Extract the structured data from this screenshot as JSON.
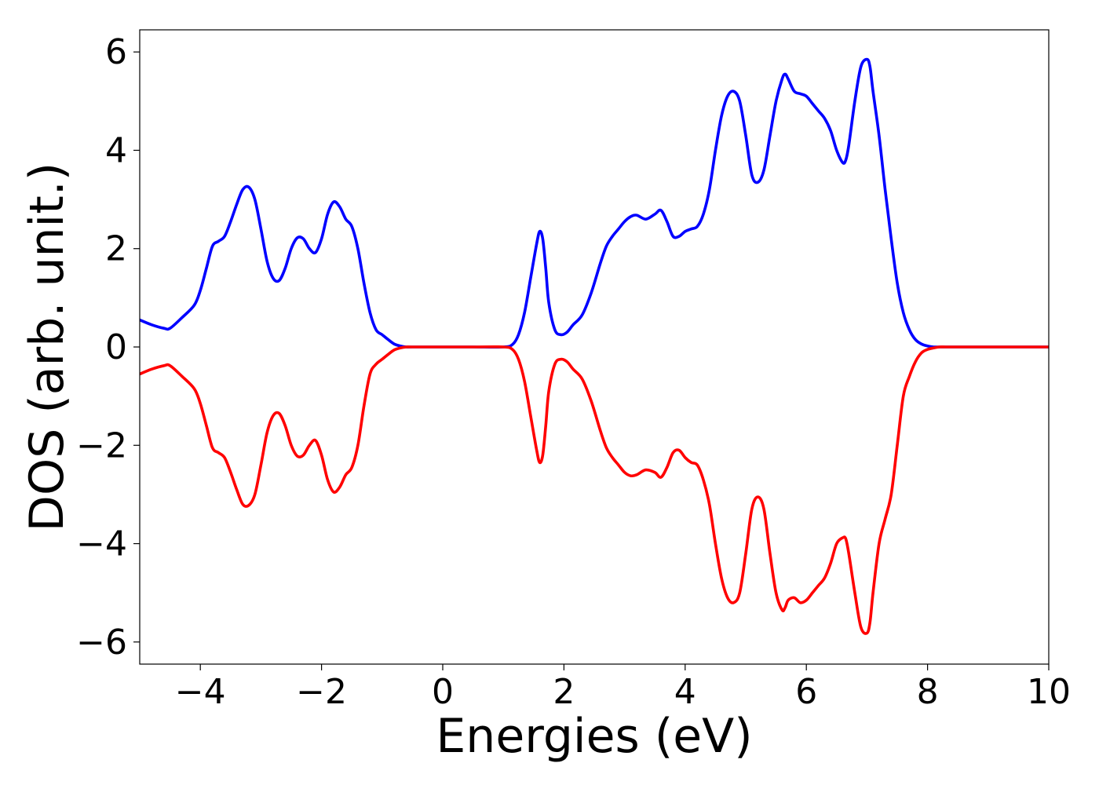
{
  "chart_data": {
    "type": "line",
    "title": "",
    "xlabel": "Energies (eV)",
    "ylabel": "DOS (arb. unit.)",
    "xlim": [
      -5,
      10
    ],
    "ylim": [
      -6.45,
      6.45
    ],
    "xticks": [
      -4,
      -2,
      0,
      2,
      4,
      6,
      8,
      10
    ],
    "xtick_labels": [
      "−4",
      "−2",
      "0",
      "2",
      "4",
      "6",
      "8",
      "10"
    ],
    "yticks": [
      -6,
      -4,
      -2,
      0,
      2,
      4,
      6
    ],
    "ytick_labels": [
      "−6",
      "−4",
      "−2",
      "0",
      "2",
      "4",
      "6"
    ],
    "grid": false,
    "legend": false,
    "series": [
      {
        "color": "#0000ff",
        "x": [
          -5.0,
          -4.8,
          -4.6,
          -4.5,
          -4.3,
          -4.1,
          -4.0,
          -3.9,
          -3.8,
          -3.7,
          -3.6,
          -3.5,
          -3.4,
          -3.3,
          -3.2,
          -3.1,
          -3.0,
          -2.9,
          -2.8,
          -2.7,
          -2.6,
          -2.5,
          -2.4,
          -2.3,
          -2.2,
          -2.1,
          -2.0,
          -1.9,
          -1.8,
          -1.7,
          -1.6,
          -1.5,
          -1.4,
          -1.3,
          -1.2,
          -1.1,
          -1.0,
          -0.9,
          -0.8,
          -0.7,
          -0.6,
          -0.5,
          0.0,
          0.5,
          1.0,
          1.15,
          1.25,
          1.35,
          1.45,
          1.55,
          1.6,
          1.65,
          1.7,
          1.75,
          1.85,
          1.95,
          2.05,
          2.15,
          2.3,
          2.45,
          2.6,
          2.7,
          2.8,
          2.9,
          3.0,
          3.1,
          3.2,
          3.35,
          3.5,
          3.6,
          3.7,
          3.8,
          3.9,
          4.0,
          4.1,
          4.2,
          4.3,
          4.4,
          4.5,
          4.6,
          4.7,
          4.8,
          4.9,
          5.0,
          5.1,
          5.2,
          5.3,
          5.4,
          5.5,
          5.6,
          5.65,
          5.7,
          5.8,
          5.9,
          6.0,
          6.1,
          6.2,
          6.3,
          6.4,
          6.5,
          6.6,
          6.65,
          6.7,
          6.8,
          6.9,
          7.0,
          7.05,
          7.1,
          7.2,
          7.3,
          7.4,
          7.5,
          7.6,
          7.7,
          7.8,
          7.9,
          8.0,
          8.1,
          8.2,
          8.3,
          8.5,
          9.0,
          10.0
        ],
        "y": [
          0.55,
          0.45,
          0.38,
          0.38,
          0.6,
          0.85,
          1.15,
          1.6,
          2.05,
          2.15,
          2.25,
          2.55,
          2.9,
          3.2,
          3.25,
          3.0,
          2.4,
          1.75,
          1.4,
          1.35,
          1.6,
          2.0,
          2.22,
          2.2,
          2.0,
          1.92,
          2.2,
          2.7,
          2.95,
          2.85,
          2.6,
          2.45,
          2.0,
          1.3,
          0.7,
          0.35,
          0.25,
          0.15,
          0.06,
          0.02,
          0.0,
          0.0,
          0.0,
          0.0,
          0.0,
          0.05,
          0.25,
          0.7,
          1.4,
          2.1,
          2.35,
          2.2,
          1.6,
          0.9,
          0.35,
          0.25,
          0.3,
          0.45,
          0.65,
          1.1,
          1.7,
          2.05,
          2.25,
          2.4,
          2.55,
          2.65,
          2.68,
          2.6,
          2.7,
          2.78,
          2.55,
          2.25,
          2.25,
          2.35,
          2.4,
          2.45,
          2.7,
          3.2,
          4.0,
          4.7,
          5.1,
          5.2,
          5.0,
          4.3,
          3.5,
          3.35,
          3.6,
          4.3,
          5.0,
          5.45,
          5.55,
          5.45,
          5.2,
          5.15,
          5.1,
          4.95,
          4.8,
          4.65,
          4.4,
          4.0,
          3.75,
          3.8,
          4.1,
          5.0,
          5.7,
          5.85,
          5.7,
          5.2,
          4.3,
          3.2,
          2.2,
          1.3,
          0.7,
          0.35,
          0.15,
          0.06,
          0.02,
          0.0,
          0.0,
          0.0,
          0.0,
          0.0,
          0.0
        ]
      },
      {
        "color": "#ff0000",
        "x": [
          -5.0,
          -4.8,
          -4.6,
          -4.5,
          -4.3,
          -4.1,
          -4.0,
          -3.9,
          -3.8,
          -3.7,
          -3.6,
          -3.5,
          -3.4,
          -3.3,
          -3.2,
          -3.1,
          -3.0,
          -2.9,
          -2.8,
          -2.7,
          -2.6,
          -2.5,
          -2.4,
          -2.3,
          -2.2,
          -2.1,
          -2.0,
          -1.9,
          -1.8,
          -1.7,
          -1.6,
          -1.5,
          -1.4,
          -1.3,
          -1.2,
          -1.1,
          -1.0,
          -0.9,
          -0.8,
          -0.7,
          -0.6,
          -0.5,
          0.0,
          0.5,
          1.0,
          1.15,
          1.25,
          1.35,
          1.45,
          1.55,
          1.6,
          1.65,
          1.7,
          1.75,
          1.85,
          1.95,
          2.05,
          2.15,
          2.3,
          2.45,
          2.6,
          2.7,
          2.8,
          2.9,
          3.0,
          3.1,
          3.2,
          3.35,
          3.5,
          3.6,
          3.7,
          3.8,
          3.9,
          4.0,
          4.1,
          4.2,
          4.3,
          4.4,
          4.5,
          4.6,
          4.7,
          4.8,
          4.9,
          5.0,
          5.1,
          5.2,
          5.3,
          5.4,
          5.5,
          5.6,
          5.65,
          5.7,
          5.8,
          5.9,
          6.0,
          6.1,
          6.2,
          6.3,
          6.4,
          6.5,
          6.6,
          6.65,
          6.7,
          6.8,
          6.9,
          7.0,
          7.05,
          7.1,
          7.2,
          7.3,
          7.4,
          7.5,
          7.6,
          7.7,
          7.8,
          7.9,
          8.0,
          8.1,
          8.2,
          8.3,
          8.5,
          9.0,
          10.0
        ],
        "y": [
          -0.55,
          -0.45,
          -0.38,
          -0.38,
          -0.6,
          -0.85,
          -1.15,
          -1.6,
          -2.05,
          -2.15,
          -2.25,
          -2.55,
          -2.9,
          -3.2,
          -3.22,
          -3.0,
          -2.4,
          -1.75,
          -1.4,
          -1.35,
          -1.6,
          -2.0,
          -2.22,
          -2.2,
          -2.0,
          -1.9,
          -2.2,
          -2.7,
          -2.95,
          -2.85,
          -2.6,
          -2.45,
          -2.0,
          -1.2,
          -0.55,
          -0.35,
          -0.25,
          -0.15,
          -0.06,
          -0.02,
          0.0,
          0.0,
          0.0,
          0.0,
          0.0,
          -0.05,
          -0.25,
          -0.7,
          -1.4,
          -2.1,
          -2.35,
          -2.2,
          -1.6,
          -0.9,
          -0.35,
          -0.25,
          -0.3,
          -0.45,
          -0.65,
          -1.1,
          -1.7,
          -2.05,
          -2.25,
          -2.4,
          -2.55,
          -2.62,
          -2.6,
          -2.5,
          -2.55,
          -2.65,
          -2.45,
          -2.15,
          -2.1,
          -2.25,
          -2.35,
          -2.4,
          -2.7,
          -3.2,
          -4.0,
          -4.7,
          -5.1,
          -5.2,
          -5.0,
          -4.2,
          -3.3,
          -3.05,
          -3.3,
          -4.2,
          -5.0,
          -5.35,
          -5.3,
          -5.15,
          -5.1,
          -5.2,
          -5.15,
          -5.0,
          -4.85,
          -4.7,
          -4.4,
          -4.0,
          -3.88,
          -3.9,
          -4.2,
          -5.0,
          -5.7,
          -5.82,
          -5.6,
          -5.0,
          -4.0,
          -3.5,
          -3.0,
          -2.0,
          -1.0,
          -0.6,
          -0.3,
          -0.12,
          -0.05,
          -0.02,
          0.0,
          0.0,
          0.0,
          0.0,
          0.0
        ]
      }
    ]
  }
}
